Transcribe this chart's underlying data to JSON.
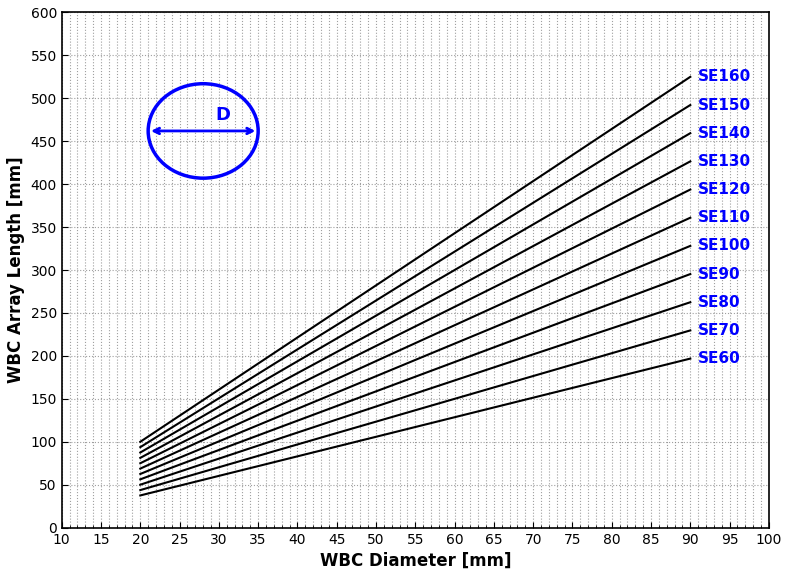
{
  "series": [
    {
      "label": "SE160",
      "se": 160
    },
    {
      "label": "SE150",
      "se": 150
    },
    {
      "label": "SE140",
      "se": 140
    },
    {
      "label": "SE130",
      "se": 130
    },
    {
      "label": "SE120",
      "se": 120
    },
    {
      "label": "SE110",
      "se": 110
    },
    {
      "label": "SE100",
      "se": 100
    },
    {
      "label": "SE90",
      "se": 90
    },
    {
      "label": "SE80",
      "se": 80
    },
    {
      "label": "SE70",
      "se": 70
    },
    {
      "label": "SE60",
      "se": 60
    }
  ],
  "x_start": 20,
  "x_end": 90,
  "xlabel": "WBC Diameter [mm]",
  "ylabel": "WBC Array Length [mm]",
  "xlim": [
    10,
    100
  ],
  "ylim": [
    0,
    600
  ],
  "xticks": [
    10,
    15,
    20,
    25,
    30,
    35,
    40,
    45,
    50,
    55,
    60,
    65,
    70,
    75,
    80,
    85,
    90,
    95,
    100
  ],
  "yticks": [
    0,
    50,
    100,
    150,
    200,
    250,
    300,
    350,
    400,
    450,
    500,
    550,
    600
  ],
  "line_color": "#000000",
  "label_color": "#0000ff",
  "bg_color": "#ffffff",
  "grid_color": "#aaaaaa",
  "circle_color": "#0000ff",
  "title_fontsize": 11,
  "label_fontsize": 12,
  "tick_fontsize": 10,
  "series_label_fontsize": 11
}
